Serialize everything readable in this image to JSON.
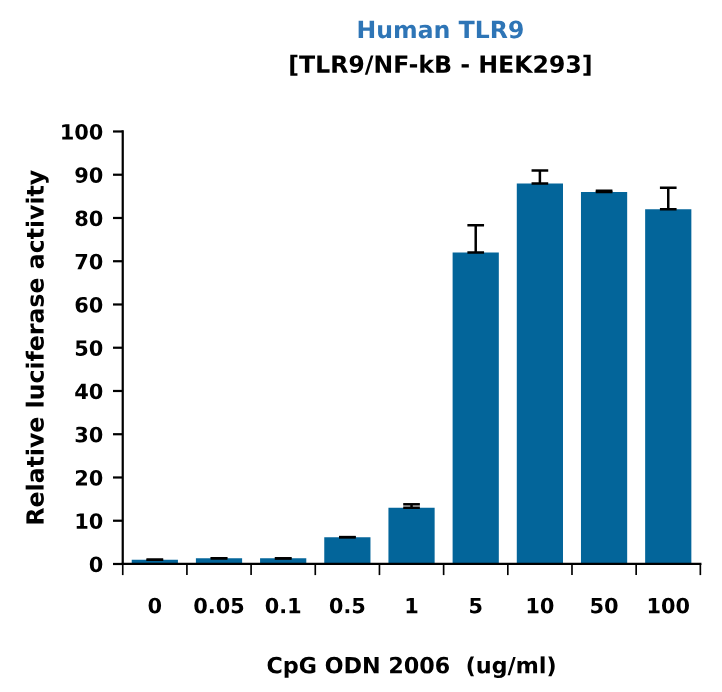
{
  "chart_data": {
    "type": "bar",
    "title": "Human TLR9",
    "subtitle": "[TLR9/NF-kB - HEK293]",
    "xlabel": "CpG ODN 2006  (ug/ml)",
    "ylabel": "Relative luciferase activity",
    "categories": [
      "0",
      "0.05",
      "0.1",
      "0.5",
      "1",
      "5",
      "10",
      "50",
      "100"
    ],
    "values": [
      1,
      1.3,
      1.3,
      6.2,
      13,
      72,
      88,
      86,
      82
    ],
    "errors": [
      [
        1,
        1
      ],
      [
        1.3,
        1.3
      ],
      [
        1.3,
        1.3
      ],
      [
        6.2,
        6.2
      ],
      [
        13,
        13.8
      ],
      [
        72,
        78.3
      ],
      [
        88,
        91
      ],
      [
        86,
        86.3
      ],
      [
        82,
        87
      ]
    ],
    "color": "#03659a",
    "ylim": [
      0,
      100
    ],
    "yticks": [
      0,
      10,
      20,
      30,
      40,
      50,
      60,
      70,
      80,
      90,
      100
    ],
    "grid": false,
    "legend": false
  }
}
